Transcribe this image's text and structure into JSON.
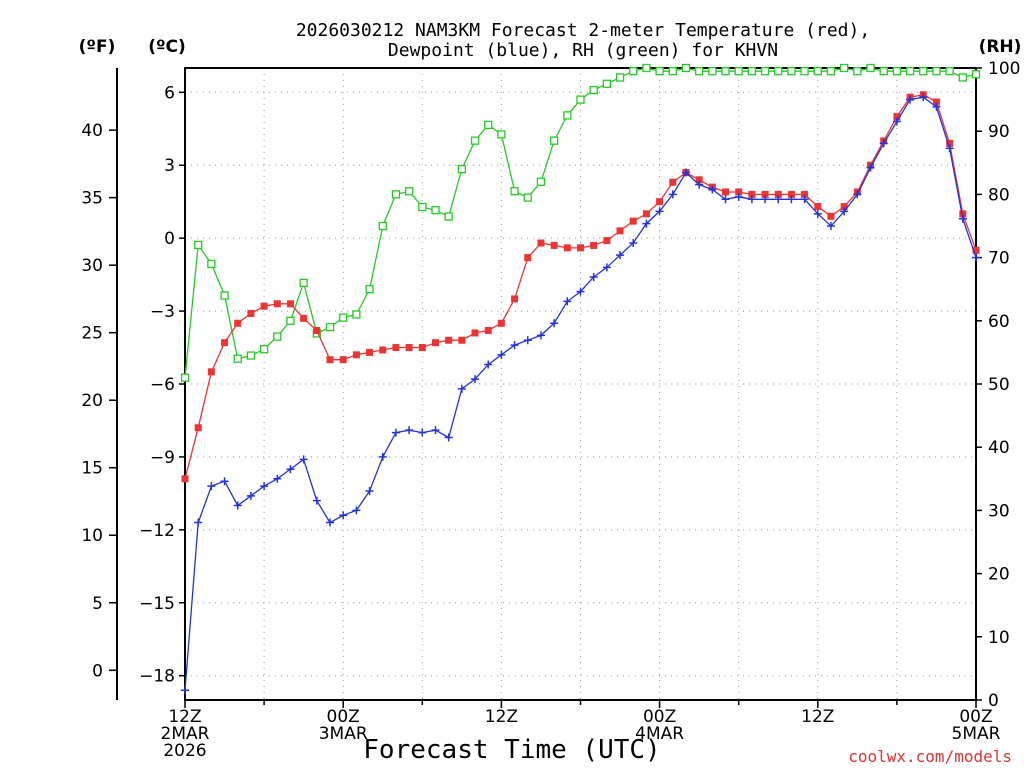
{
  "chart_data": {
    "type": "line",
    "title_line1": "2026030212 NAM3KM Forecast 2-meter Temperature (red),",
    "title_line2": "Dewpoint (blue), RH (green) for KHVN",
    "xlabel": "Forecast Time (UTC)",
    "units_f": "(ºF)",
    "units_c": "(ºC)",
    "units_rh": "(RH)",
    "credit": "coolwx.com/models",
    "colors": {
      "temperature": "#ee3333",
      "dewpoint": "#2233dd",
      "rh": "#22cc22",
      "grid": "#999999",
      "credit": "#dd3333"
    },
    "x_hours": [
      0,
      1,
      2,
      3,
      4,
      5,
      6,
      7,
      8,
      9,
      10,
      11,
      12,
      13,
      14,
      15,
      16,
      17,
      18,
      19,
      20,
      21,
      22,
      23,
      24,
      25,
      26,
      27,
      28,
      29,
      30,
      31,
      32,
      33,
      34,
      35,
      36,
      37,
      38,
      39,
      40,
      41,
      42,
      43,
      44,
      45,
      46,
      47,
      48,
      49,
      50,
      51,
      52,
      53,
      54,
      55,
      56,
      57,
      58,
      59,
      60
    ],
    "xlim": [
      0,
      60
    ],
    "x_ticks": [
      {
        "hour": 0,
        "lines": [
          "12Z",
          "2MAR",
          "2026"
        ]
      },
      {
        "hour": 12,
        "lines": [
          "00Z",
          "3MAR"
        ]
      },
      {
        "hour": 24,
        "lines": [
          "12Z"
        ]
      },
      {
        "hour": 36,
        "lines": [
          "00Z",
          "4MAR"
        ]
      },
      {
        "hour": 48,
        "lines": [
          "12Z"
        ]
      },
      {
        "hour": 60,
        "lines": [
          "00Z",
          "5MAR"
        ]
      }
    ],
    "ylim_c": [
      -19,
      7
    ],
    "yticks_c": [
      "6",
      "3",
      "0",
      "−3",
      "−6",
      "−9",
      "−12",
      "−15",
      "−18"
    ],
    "yticks_c_values": [
      6,
      3,
      0,
      -3,
      -6,
      -9,
      -12,
      -15,
      -18
    ],
    "yticks_f": [
      "40",
      "35",
      "30",
      "25",
      "20",
      "15",
      "10",
      "5",
      "0"
    ],
    "yticks_f_values": [
      40,
      35,
      30,
      25,
      20,
      15,
      10,
      5,
      0
    ],
    "ylim_rh": [
      0,
      100
    ],
    "yticks_rh": [
      "100",
      "90",
      "80",
      "70",
      "60",
      "50",
      "40",
      "30",
      "20",
      "10",
      "0"
    ],
    "yticks_rh_values": [
      100,
      90,
      80,
      70,
      60,
      50,
      40,
      30,
      20,
      10,
      0
    ],
    "series": [
      {
        "name": "Temperature (°C)",
        "axis": "c",
        "marker": "filled-square",
        "values": [
          -9.9,
          -7.8,
          -5.5,
          -4.3,
          -3.5,
          -3.1,
          -2.8,
          -2.7,
          -2.7,
          -3.3,
          -3.8,
          -5.0,
          -5.0,
          -4.8,
          -4.7,
          -4.6,
          -4.5,
          -4.5,
          -4.5,
          -4.3,
          -4.2,
          -4.2,
          -3.9,
          -3.8,
          -3.5,
          -2.5,
          -0.8,
          -0.2,
          -0.3,
          -0.4,
          -0.4,
          -0.3,
          -0.1,
          0.3,
          0.7,
          1.0,
          1.5,
          2.3,
          2.7,
          2.4,
          2.1,
          1.9,
          1.9,
          1.8,
          1.8,
          1.8,
          1.8,
          1.8,
          1.3,
          0.9,
          1.3,
          1.9,
          3.0,
          4.0,
          5.0,
          5.8,
          5.9,
          5.6,
          3.9,
          1.0,
          -0.5
        ]
      },
      {
        "name": "Dewpoint (°C)",
        "axis": "c",
        "marker": "plus",
        "values": [
          -18.6,
          -11.7,
          -10.2,
          -10.0,
          -11.0,
          -10.6,
          -10.2,
          -9.9,
          -9.5,
          -9.1,
          -10.8,
          -11.7,
          -11.4,
          -11.2,
          -10.4,
          -9.0,
          -8.0,
          -7.9,
          -8.0,
          -7.9,
          -8.2,
          -6.2,
          -5.8,
          -5.2,
          -4.8,
          -4.4,
          -4.2,
          -4.0,
          -3.5,
          -2.6,
          -2.2,
          -1.6,
          -1.2,
          -0.7,
          -0.2,
          0.6,
          1.1,
          1.8,
          2.7,
          2.2,
          2.0,
          1.6,
          1.7,
          1.6,
          1.6,
          1.6,
          1.6,
          1.6,
          1.0,
          0.5,
          1.1,
          1.8,
          2.9,
          3.9,
          4.8,
          5.7,
          5.8,
          5.4,
          3.7,
          0.8,
          -0.8
        ]
      },
      {
        "name": "RH (%)",
        "axis": "rh",
        "marker": "open-square",
        "values": [
          51,
          72,
          69,
          64,
          54,
          54.5,
          55.5,
          57.5,
          60,
          66,
          58,
          59,
          60.5,
          61,
          65,
          75,
          80,
          80.5,
          78,
          77.5,
          76.5,
          84,
          88.5,
          91,
          89.5,
          80.5,
          79.5,
          82,
          88.5,
          92.5,
          95,
          96.5,
          97.5,
          98.5,
          99.5,
          100,
          99.5,
          99.5,
          100,
          99.5,
          99.5,
          99.5,
          99.5,
          99.5,
          99.5,
          99.5,
          99.5,
          99.5,
          99.5,
          99.5,
          100,
          99.5,
          100,
          99.5,
          99.5,
          99.5,
          99.5,
          99.5,
          99.5,
          98.5,
          99
        ]
      }
    ]
  }
}
